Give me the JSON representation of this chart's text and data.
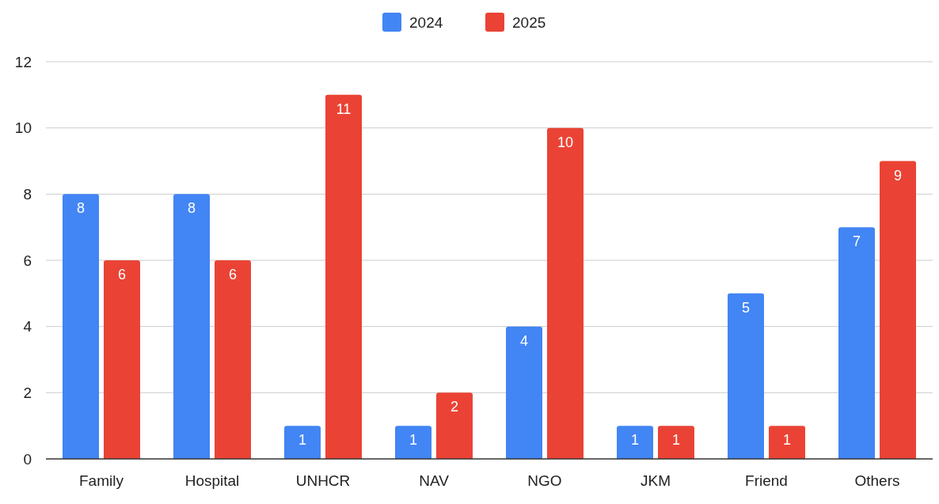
{
  "chart_data": {
    "type": "bar",
    "categories": [
      "Family",
      "Hospital",
      "UNHCR",
      "NAV",
      "NGO",
      "JKM",
      "Friend",
      "Others"
    ],
    "series": [
      {
        "name": "2024",
        "color": "#4285f4",
        "values": [
          8,
          8,
          1,
          1,
          4,
          1,
          5,
          7
        ]
      },
      {
        "name": "2025",
        "color": "#ea4335",
        "values": [
          6,
          6,
          11,
          2,
          10,
          1,
          1,
          9
        ]
      }
    ],
    "ylim": [
      0,
      12
    ],
    "yticks": [
      0,
      2,
      4,
      6,
      8,
      10,
      12
    ],
    "grid": "y",
    "legend": "top",
    "data_labels": true
  }
}
